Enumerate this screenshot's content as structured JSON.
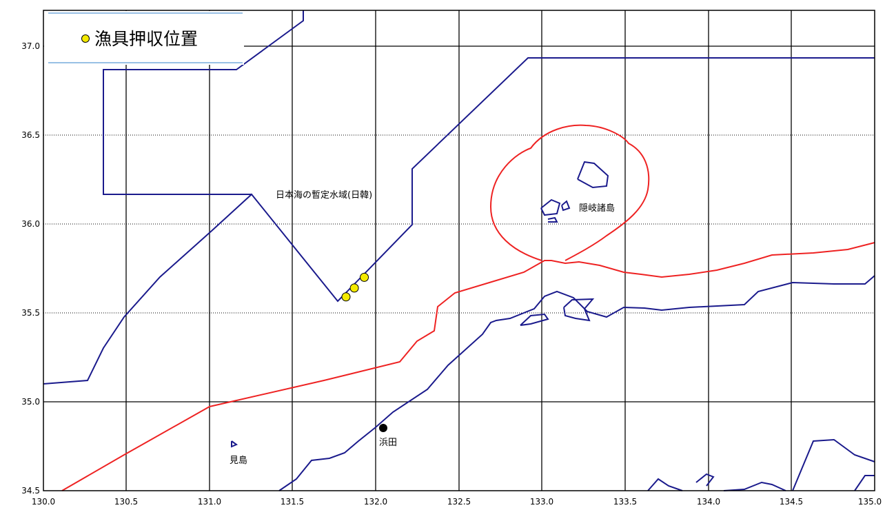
{
  "legend": {
    "label": "漁具押収位置",
    "marker_color": "#f4ea00"
  },
  "axes": {
    "x_ticks": [
      "130.0",
      "130.5",
      "131.0",
      "131.5",
      "132.0",
      "132.5",
      "133.0",
      "133.5",
      "134.0",
      "134.5",
      "135.0"
    ],
    "y_ticks": [
      "37.0",
      "36.5",
      "36.0",
      "35.5",
      "35.0",
      "34.5"
    ],
    "lon_range": [
      130.0,
      135.0
    ],
    "lat_range": [
      34.5,
      37.2
    ]
  },
  "labels": {
    "zone": "日本海の暫定水域(日韓)",
    "oki": "隠岐諸島",
    "hamada": "浜田",
    "mishima": "見島"
  },
  "seizure_points": [
    {
      "lon": 131.82,
      "lat": 35.59
    },
    {
      "lon": 131.87,
      "lat": 35.64
    },
    {
      "lon": 131.93,
      "lat": 35.7
    }
  ],
  "colors": {
    "zone_line": "#1a1a8c",
    "coast_line": "#1a1a8c",
    "eez_line": "#ee2222",
    "major_grid": "#000000",
    "minor_grid": "#000000"
  }
}
